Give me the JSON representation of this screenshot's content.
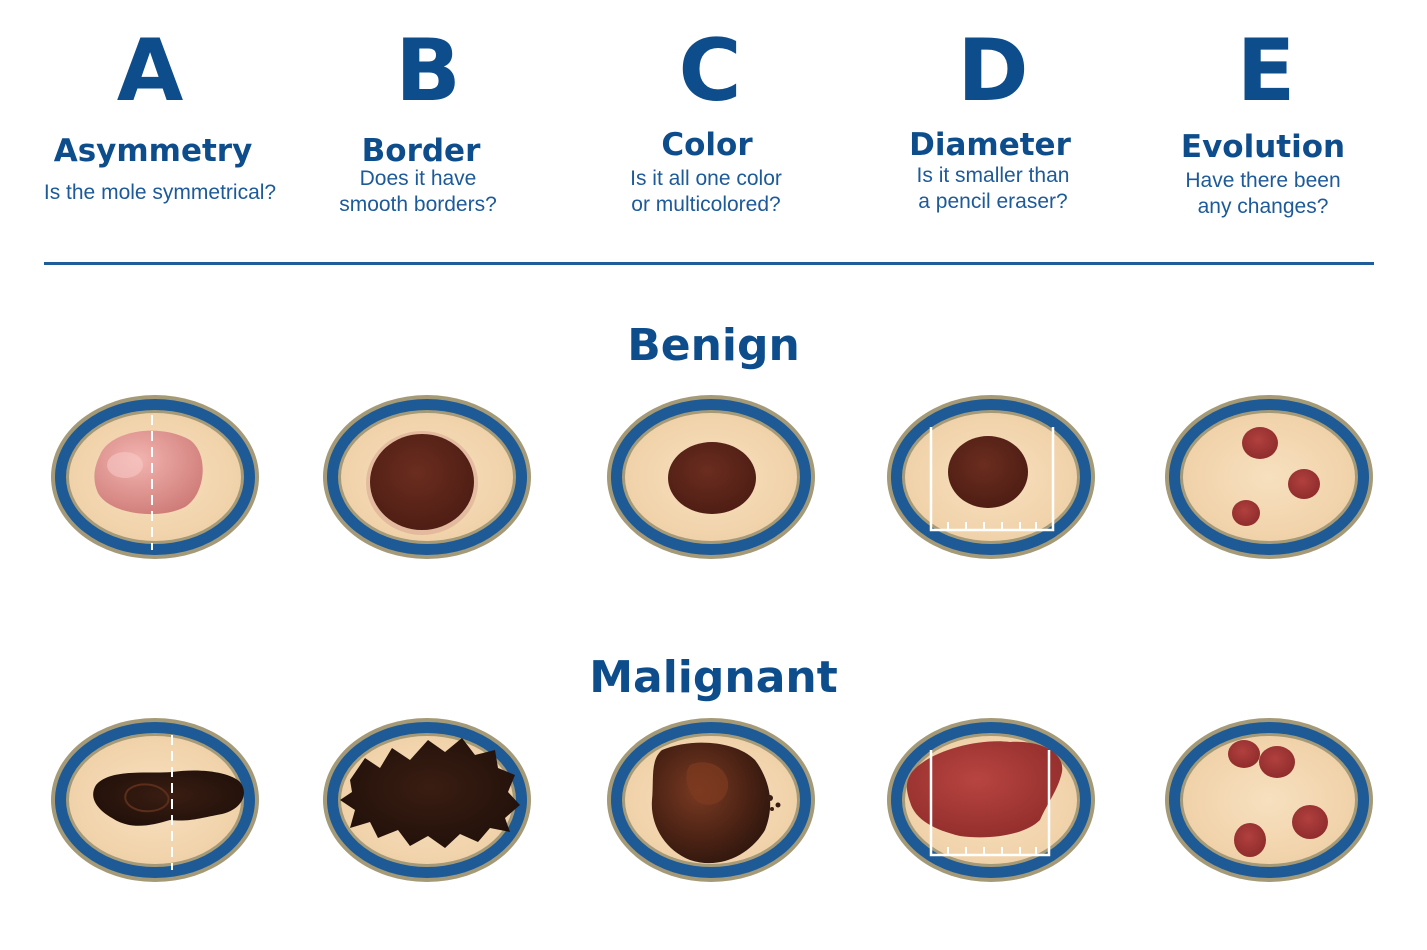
{
  "criteria": [
    {
      "letter": "A",
      "term": "Asymmetry",
      "question_lines": [
        "Is the mole symmetrical?"
      ]
    },
    {
      "letter": "B",
      "term": "Border",
      "question_lines": [
        "Does it have",
        "smooth borders?"
      ]
    },
    {
      "letter": "C",
      "term": "Color",
      "question_lines": [
        "Is it all one color",
        "or multicolored?"
      ]
    },
    {
      "letter": "D",
      "term": "Diameter",
      "question_lines": [
        "Is it smaller than",
        "a pencil eraser?"
      ]
    },
    {
      "letter": "E",
      "term": "Evolution",
      "question_lines": [
        "Have there been",
        "any changes?"
      ]
    }
  ],
  "sections": {
    "benign": "Benign",
    "malignant": "Malignant"
  },
  "colors": {
    "brand_blue": "#0d4d8c",
    "ring_blue": "#1d5a96",
    "skin": "#f4d9b4",
    "benign_pink": "#d98a86",
    "mole_brown": "#5a2418",
    "mole_dark": "#2a140c",
    "malignant_red": "#9a2f2c"
  }
}
